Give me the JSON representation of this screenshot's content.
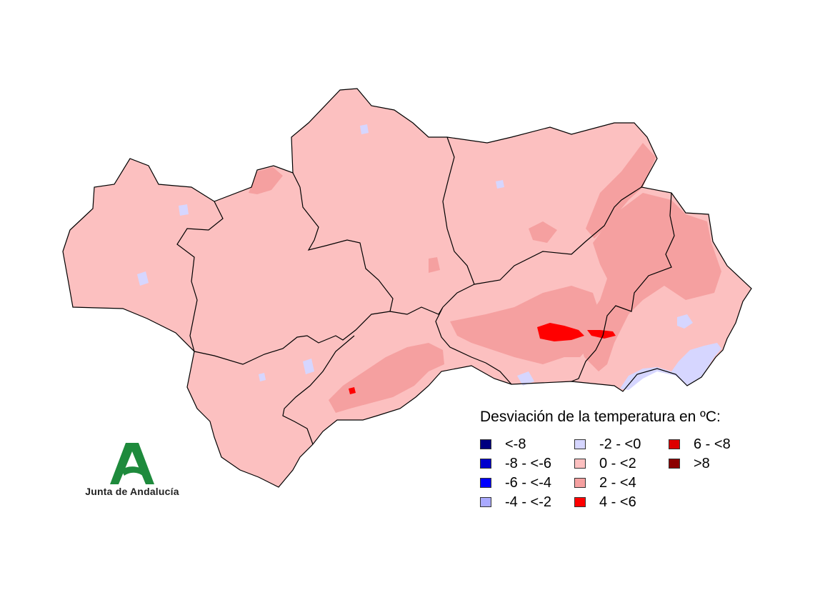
{
  "legend": {
    "title": "Desviación de la temperatura en ºC:",
    "items": [
      {
        "label": "<-8",
        "color": "#000080"
      },
      {
        "label": "-8 - <-6",
        "color": "#0000cd"
      },
      {
        "label": "-6 - <-4",
        "color": "#0000ff"
      },
      {
        "label": "-4 - <-2",
        "color": "#aaaaff"
      },
      {
        "label": "-2 - <0",
        "color": "#d6d6ff"
      },
      {
        "label": "0 - <2",
        "color": "#fcc0c0"
      },
      {
        "label": "2 - <4",
        "color": "#f5a0a0"
      },
      {
        "label": "4 - <6",
        "color": "#ff0000"
      },
      {
        "label": "6 - <8",
        "color": "#dd0000"
      },
      {
        "label": ">8",
        "color": "#8b0000"
      }
    ]
  },
  "logo": {
    "text": "Junta de Andalucía",
    "color": "#1e8a3c"
  },
  "map": {
    "base_color": "#fcc0c0",
    "warm_color": "#f5a0a0",
    "hot_color": "#ff0000",
    "cool_color": "#d6d6ff"
  }
}
